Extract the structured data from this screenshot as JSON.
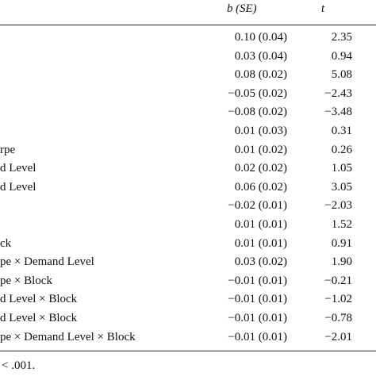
{
  "header": {
    "b": "b",
    "se": "(SE)",
    "t": "t"
  },
  "table": {
    "rows": [
      {
        "b": "0.10 (0.04)",
        "t": "2.35"
      },
      {
        "b": "0.03 (0.04)",
        "t": "0.94"
      },
      {
        "b": "0.08 (0.02)",
        "t": "5.08"
      },
      {
        "b": "−0.05 (0.02)",
        "t": "−2.43"
      },
      {
        "b": "−0.08 (0.02)",
        "t": "−3.48"
      },
      {
        "b": "0.01 (0.03)",
        "t": "0.31"
      },
      {
        "label": "rpe",
        "b": "0.01 (0.02)",
        "t": "0.26"
      },
      {
        "label": "d Level",
        "b": "0.02 (0.02)",
        "t": "1.05"
      },
      {
        "label": "d Level",
        "b": "0.06 (0.02)",
        "t": "3.05"
      },
      {
        "b": "−0.02 (0.01)",
        "t": "−2.03"
      },
      {
        "b": "0.01 (0.01)",
        "t": "1.52"
      },
      {
        "label": "ck",
        "b": "0.01 (0.01)",
        "t": "0.91"
      },
      {
        "label": "pe × Demand Level",
        "b": "0.03 (0.02)",
        "t": "1.90"
      },
      {
        "label": "pe × Block",
        "b": "−0.01 (0.01)",
        "t": "−0.21"
      },
      {
        "label": "d Level × Block",
        "b": "−0.01 (0.01)",
        "t": "−1.02"
      },
      {
        "label": "d Level × Block",
        "b": "−0.01 (0.01)",
        "t": "−0.78"
      },
      {
        "label": "pe × Demand Level × Block",
        "b": "−0.01 (0.01)",
        "t": "−2.01"
      }
    ]
  },
  "footnote": "< .001."
}
